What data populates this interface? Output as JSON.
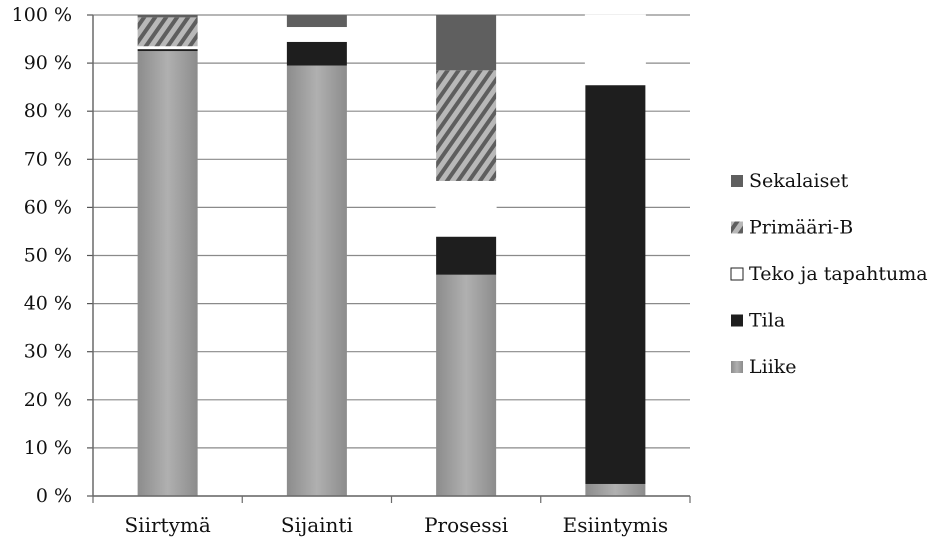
{
  "chart_data": {
    "type": "bar",
    "stacked": true,
    "normalized": true,
    "categories": [
      "Siirtymä",
      "Sijainti",
      "Prosessi",
      "Esiintymis"
    ],
    "series": [
      {
        "name": "Liike",
        "values": [
          92.5,
          89.5,
          46,
          2.5
        ],
        "color": "#9a9a9a",
        "pattern": "gradient"
      },
      {
        "name": "Tila",
        "values": [
          0.5,
          5,
          8,
          83
        ],
        "color": "#1e1e1e",
        "pattern": "solid"
      },
      {
        "name": "Teko ja tapahtuma",
        "values": [
          0.5,
          3,
          11.5,
          14.5
        ],
        "color": "#ffffff",
        "pattern": "solid"
      },
      {
        "name": "Primääri-B",
        "values": [
          6,
          0,
          23,
          0
        ],
        "color": "#7a7a7a",
        "pattern": "hatch"
      },
      {
        "name": "Sekalaiset",
        "values": [
          0.5,
          2.5,
          11.5,
          0
        ],
        "color": "#5f5f5f",
        "pattern": "solid"
      }
    ],
    "y_ticks": [
      "0 %",
      "10 %",
      "20 %",
      "30 %",
      "40 %",
      "50 %",
      "60 %",
      "70 %",
      "80 %",
      "90 %",
      "100 %"
    ],
    "ylim": [
      0,
      100
    ],
    "grid": true,
    "legend_position": "right",
    "legend_order": [
      "Sekalaiset",
      "Primääri-B",
      "Teko ja tapahtuma",
      "Tila",
      "Liike"
    ]
  }
}
